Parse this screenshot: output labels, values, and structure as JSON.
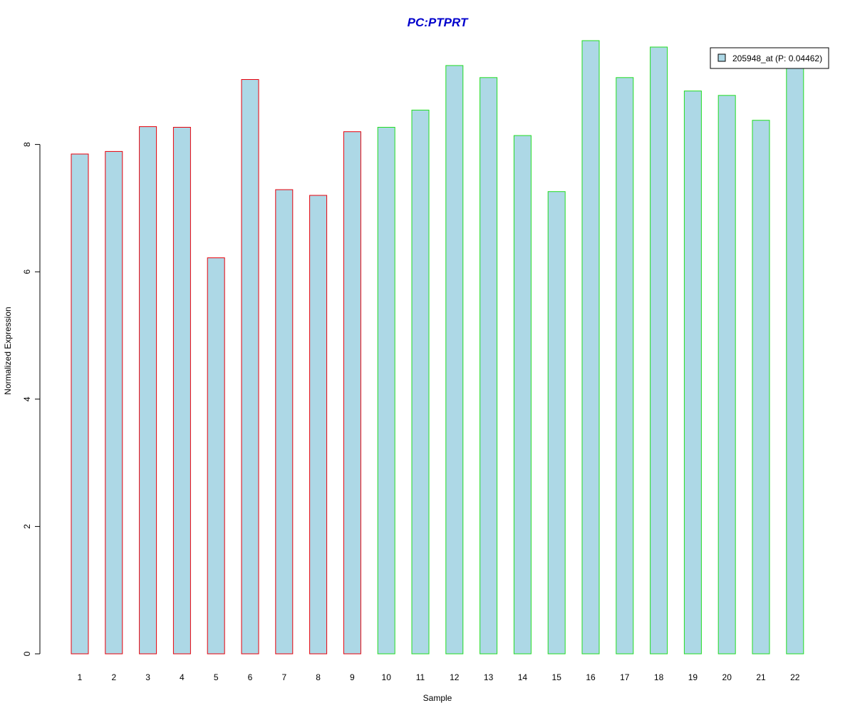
{
  "chart_data": {
    "type": "bar",
    "title": "PC:PTPRT",
    "xlabel": "Sample",
    "ylabel": "Normalized Expression",
    "categories": [
      "1",
      "2",
      "3",
      "4",
      "5",
      "6",
      "7",
      "8",
      "9",
      "10",
      "11",
      "12",
      "13",
      "14",
      "15",
      "16",
      "17",
      "18",
      "19",
      "20",
      "21",
      "22"
    ],
    "series": [
      {
        "name": "205948_at (P: 0.04462)",
        "values": [
          7.85,
          7.89,
          8.28,
          8.27,
          6.22,
          9.02,
          7.29,
          7.2,
          8.2,
          8.27,
          8.54,
          9.24,
          9.05,
          8.14,
          7.26,
          9.63,
          9.05,
          9.53,
          8.84,
          8.77,
          8.38,
          9.25
        ]
      }
    ],
    "group_border_colors": [
      "#e8000b",
      "#e8000b",
      "#e8000b",
      "#e8000b",
      "#e8000b",
      "#e8000b",
      "#e8000b",
      "#e8000b",
      "#e8000b",
      "#22dd22",
      "#22dd22",
      "#22dd22",
      "#22dd22",
      "#22dd22",
      "#22dd22",
      "#22dd22",
      "#22dd22",
      "#22dd22",
      "#22dd22",
      "#22dd22",
      "#22dd22",
      "#22dd22"
    ],
    "ylim": [
      0,
      9.63
    ],
    "yticks": [
      0,
      2,
      4,
      6,
      8
    ],
    "grid": false,
    "legend_position": "top-right",
    "colors": {
      "bar_fill": "#add8e6",
      "title": "#0000cc",
      "axis": "#000000"
    }
  }
}
